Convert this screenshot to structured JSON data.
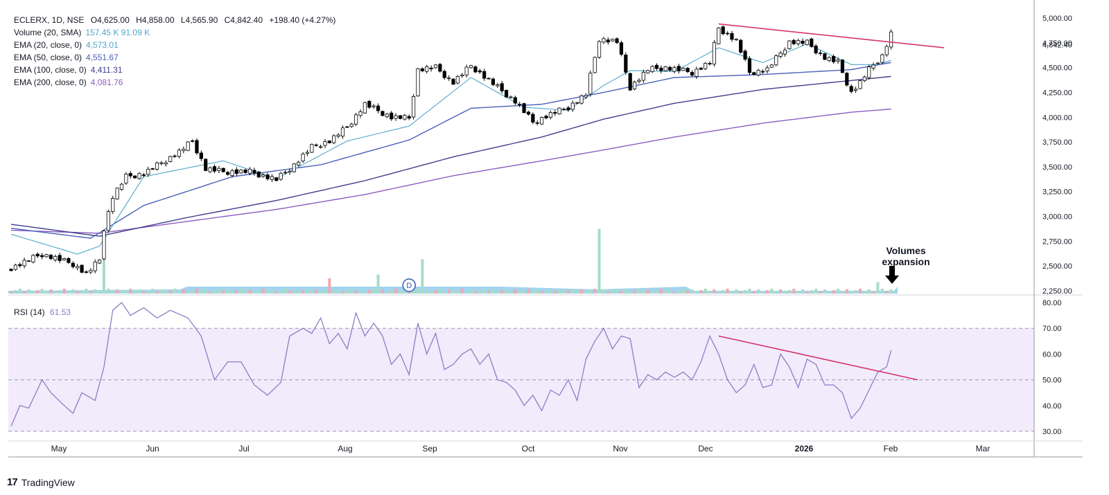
{
  "header": {
    "symbol": "ECLERX, 1D, NSE",
    "open_label": "O",
    "open": "4,625.00",
    "high_label": "H",
    "high": "4,858.00",
    "low_label": "L",
    "low": "4,565.90",
    "close_label": "C",
    "close": "4,842.40",
    "change": "+198.40 (+4.27%)"
  },
  "indicators": [
    {
      "label": "Volume (20, SMA)",
      "value": "157.45 K  91.09 K",
      "color": "#4ea6c9"
    },
    {
      "label": "EMA (20, close, 0)",
      "value": "4,573.01",
      "color": "#4ea6c9"
    },
    {
      "label": "EMA (50, close, 0)",
      "value": "4,551.67",
      "color": "#4a60b8"
    },
    {
      "label": "EMA (100, close, 0)",
      "value": "4,411.31",
      "color": "#3f3c8c"
    },
    {
      "label": "EMA (200, close, 0)",
      "value": "4,081.76",
      "color": "#8e5cc2"
    }
  ],
  "rsi_legend": {
    "label": "RSI (14)",
    "value": "61.53",
    "color": "#8e7cc3"
  },
  "annotation": {
    "line1": "Volumes",
    "line2": "expansion"
  },
  "dividend_marker": "D",
  "footer": {
    "brand": "TradingView"
  },
  "colors": {
    "up": "#ffffff",
    "down": "#000000",
    "wick": "#000000",
    "ema20": "#4ea6c9",
    "ema50": "#4a60b8",
    "ema100": "#3f3c8c",
    "ema200": "#8e5cc2",
    "trendline": "#d6336c",
    "rsi": "#8e7cc3",
    "rsi_band": "#f1ebfb",
    "vol_up": "#a8dcc5",
    "vol_down": "#eeaab2",
    "vol_ma": "#7cc2e8"
  },
  "chart_data": {
    "type": "candlestick",
    "price_axis": {
      "min": 2250,
      "max": 5000,
      "ticks": [
        "2,250.00",
        "2,500.00",
        "2,750.00",
        "3,000.00",
        "3,250.00",
        "3,500.00",
        "3,750.00",
        "4,000.00",
        "4,250.00",
        "4,500.00",
        "4,750.00",
        "5,000.00"
      ],
      "last_price_label": "4,842.40"
    },
    "rsi_axis": {
      "min": 30,
      "max": 80,
      "ticks": [
        "30.00",
        "40.00",
        "50.00",
        "60.00",
        "70.00",
        "80.00"
      ],
      "band": [
        50,
        70
      ]
    },
    "x_labels": [
      "May",
      "Jun",
      "Jul",
      "Aug",
      "Sep",
      "Oct",
      "Nov",
      "Dec",
      "2026",
      "Feb",
      "Mar"
    ],
    "bars": 200,
    "price_anchors": [
      [
        0,
        2480
      ],
      [
        7,
        2620
      ],
      [
        14,
        2520
      ],
      [
        17,
        2420
      ],
      [
        20,
        2560
      ],
      [
        21,
        2880
      ],
      [
        23,
        3200
      ],
      [
        26,
        3400
      ],
      [
        30,
        3430
      ],
      [
        38,
        3650
      ],
      [
        41,
        3760
      ],
      [
        44,
        3480
      ],
      [
        48,
        3450
      ],
      [
        54,
        3450
      ],
      [
        60,
        3370
      ],
      [
        64,
        3520
      ],
      [
        68,
        3700
      ],
      [
        72,
        3760
      ],
      [
        76,
        3900
      ],
      [
        80,
        4130
      ],
      [
        86,
        4000
      ],
      [
        90,
        3990
      ],
      [
        92,
        4480
      ],
      [
        96,
        4500
      ],
      [
        100,
        4350
      ],
      [
        104,
        4520
      ],
      [
        110,
        4300
      ],
      [
        114,
        4160
      ],
      [
        118,
        3950
      ],
      [
        122,
        4030
      ],
      [
        126,
        4100
      ],
      [
        130,
        4230
      ],
      [
        133,
        4790
      ],
      [
        137,
        4760
      ],
      [
        140,
        4300
      ],
      [
        144,
        4480
      ],
      [
        148,
        4500
      ],
      [
        154,
        4450
      ],
      [
        158,
        4550
      ],
      [
        160,
        4900
      ],
      [
        164,
        4770
      ],
      [
        167,
        4450
      ],
      [
        171,
        4480
      ],
      [
        176,
        4760
      ],
      [
        180,
        4750
      ],
      [
        184,
        4600
      ],
      [
        187,
        4550
      ],
      [
        190,
        4250
      ],
      [
        192,
        4350
      ],
      [
        194,
        4480
      ],
      [
        197,
        4620
      ],
      [
        199,
        4842
      ]
    ],
    "volume_up_spikes": [
      [
        21,
        0.55
      ],
      [
        83,
        0.25
      ],
      [
        93,
        0.45
      ],
      [
        133,
        0.85
      ],
      [
        196,
        0.15
      ]
    ],
    "volume_down_spikes": [
      [
        72,
        0.2
      ]
    ],
    "ema20": [
      [
        0,
        2820
      ],
      [
        15,
        2620
      ],
      [
        20,
        2700
      ],
      [
        30,
        3400
      ],
      [
        48,
        3560
      ],
      [
        60,
        3380
      ],
      [
        76,
        3760
      ],
      [
        90,
        3910
      ],
      [
        104,
        4400
      ],
      [
        116,
        4100
      ],
      [
        126,
        4070
      ],
      [
        134,
        4320
      ],
      [
        140,
        4470
      ],
      [
        150,
        4460
      ],
      [
        160,
        4700
      ],
      [
        170,
        4550
      ],
      [
        180,
        4740
      ],
      [
        190,
        4530
      ],
      [
        196,
        4530
      ],
      [
        199,
        4573
      ]
    ],
    "ema50": [
      [
        0,
        2880
      ],
      [
        18,
        2780
      ],
      [
        30,
        3110
      ],
      [
        50,
        3400
      ],
      [
        70,
        3520
      ],
      [
        90,
        3770
      ],
      [
        104,
        4090
      ],
      [
        120,
        4130
      ],
      [
        134,
        4250
      ],
      [
        150,
        4400
      ],
      [
        170,
        4430
      ],
      [
        190,
        4480
      ],
      [
        199,
        4551
      ]
    ],
    "ema100": [
      [
        0,
        2920
      ],
      [
        20,
        2800
      ],
      [
        40,
        2990
      ],
      [
        60,
        3160
      ],
      [
        80,
        3360
      ],
      [
        100,
        3600
      ],
      [
        120,
        3800
      ],
      [
        134,
        3980
      ],
      [
        150,
        4140
      ],
      [
        170,
        4280
      ],
      [
        190,
        4370
      ],
      [
        199,
        4411
      ]
    ],
    "ema200": [
      [
        0,
        2860
      ],
      [
        20,
        2830
      ],
      [
        40,
        2950
      ],
      [
        60,
        3070
      ],
      [
        80,
        3220
      ],
      [
        100,
        3410
      ],
      [
        120,
        3560
      ],
      [
        134,
        3670
      ],
      [
        150,
        3800
      ],
      [
        170,
        3940
      ],
      [
        190,
        4050
      ],
      [
        199,
        4082
      ]
    ],
    "price_trendline": [
      [
        160,
        4940
      ],
      [
        211,
        4700
      ]
    ],
    "rsi": [
      [
        0,
        32
      ],
      [
        2,
        40
      ],
      [
        4,
        39
      ],
      [
        7,
        50
      ],
      [
        9,
        45
      ],
      [
        12,
        40
      ],
      [
        14,
        37
      ],
      [
        16,
        45
      ],
      [
        19,
        42
      ],
      [
        21,
        55
      ],
      [
        23,
        77
      ],
      [
        25,
        80
      ],
      [
        27,
        75
      ],
      [
        30,
        78
      ],
      [
        33,
        74
      ],
      [
        36,
        77
      ],
      [
        40,
        74
      ],
      [
        43,
        67
      ],
      [
        46,
        50
      ],
      [
        49,
        57
      ],
      [
        52,
        57
      ],
      [
        55,
        48
      ],
      [
        58,
        44
      ],
      [
        61,
        49
      ],
      [
        63,
        67
      ],
      [
        66,
        70
      ],
      [
        68,
        68
      ],
      [
        70,
        74
      ],
      [
        72,
        64
      ],
      [
        74,
        68
      ],
      [
        76,
        62
      ],
      [
        78,
        76
      ],
      [
        80,
        67
      ],
      [
        82,
        72
      ],
      [
        84,
        67
      ],
      [
        86,
        56
      ],
      [
        88,
        60
      ],
      [
        90,
        52
      ],
      [
        92,
        72
      ],
      [
        94,
        60
      ],
      [
        96,
        68
      ],
      [
        98,
        54
      ],
      [
        100,
        56
      ],
      [
        102,
        60
      ],
      [
        104,
        62
      ],
      [
        106,
        56
      ],
      [
        108,
        60
      ],
      [
        110,
        50
      ],
      [
        112,
        49
      ],
      [
        114,
        46
      ],
      [
        116,
        40
      ],
      [
        118,
        44
      ],
      [
        120,
        38
      ],
      [
        122,
        46
      ],
      [
        124,
        44
      ],
      [
        126,
        50
      ],
      [
        128,
        42
      ],
      [
        130,
        58
      ],
      [
        132,
        65
      ],
      [
        134,
        70
      ],
      [
        136,
        62
      ],
      [
        138,
        67
      ],
      [
        140,
        66
      ],
      [
        142,
        47
      ],
      [
        144,
        52
      ],
      [
        146,
        50
      ],
      [
        148,
        53
      ],
      [
        150,
        51
      ],
      [
        152,
        53
      ],
      [
        154,
        50
      ],
      [
        156,
        57
      ],
      [
        158,
        67
      ],
      [
        160,
        60
      ],
      [
        162,
        50
      ],
      [
        164,
        45
      ],
      [
        166,
        48
      ],
      [
        168,
        56
      ],
      [
        170,
        47
      ],
      [
        172,
        48
      ],
      [
        174,
        60
      ],
      [
        176,
        55
      ],
      [
        178,
        47
      ],
      [
        180,
        58
      ],
      [
        182,
        56
      ],
      [
        184,
        48
      ],
      [
        186,
        48
      ],
      [
        188,
        45
      ],
      [
        190,
        35
      ],
      [
        192,
        39
      ],
      [
        194,
        46
      ],
      [
        196,
        53
      ],
      [
        197,
        54
      ],
      [
        198,
        55
      ],
      [
        199,
        61.53
      ]
    ],
    "rsi_trendline": [
      [
        160,
        67
      ],
      [
        205,
        50
      ]
    ]
  }
}
